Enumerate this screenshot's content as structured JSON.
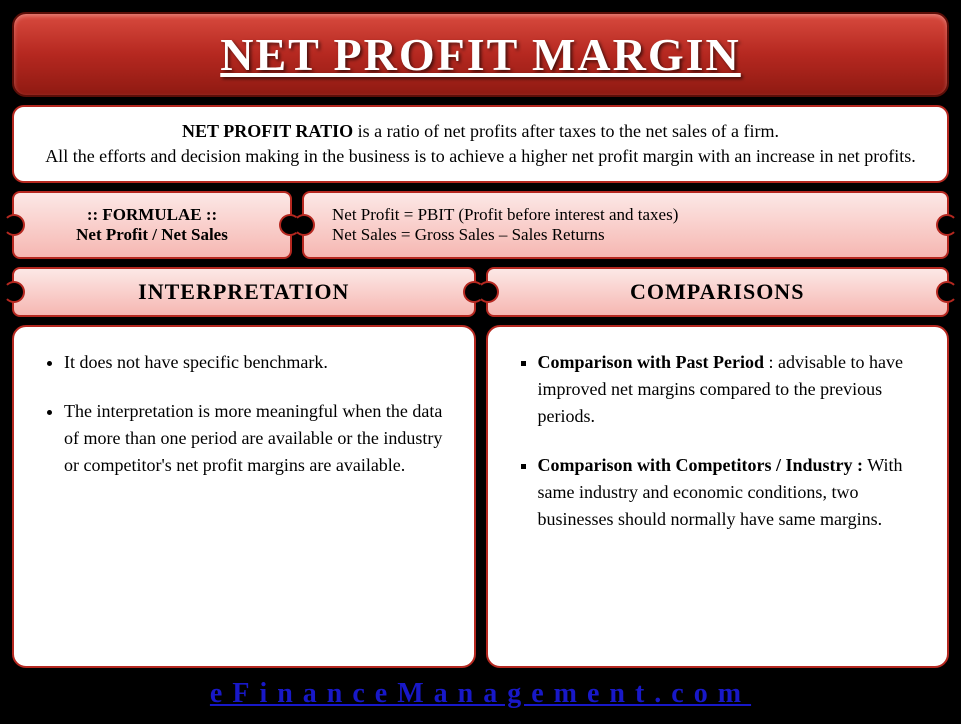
{
  "title": "NET PROFIT MARGIN",
  "intro": {
    "bold_lead": "NET PROFIT RATIO",
    "lead_rest": " is a ratio of net profits after taxes to the net sales of a firm.",
    "line2": "All the efforts and decision making in the business is to achieve a higher net profit margin with an increase in net profits."
  },
  "formula": {
    "header": ":: FORMULAE ::",
    "expression": "Net Profit / Net Sales",
    "def1": "Net Profit = PBIT (Profit before interest and taxes)",
    "def2": "Net Sales = Gross Sales – Sales Returns"
  },
  "sections": {
    "left_header": "INTERPRETATION",
    "right_header": "COMPARISONS"
  },
  "interpretation": {
    "item1": "It does not have specific benchmark.",
    "item2": "The interpretation is more meaningful when the data of more than one period are available or the industry or competitor's net profit margins are available."
  },
  "comparisons": {
    "item1_bold": "Comparison with Past Period",
    "item1_rest": " : advisable to have improved net margins compared to the previous periods.",
    "item2_bold": "Comparison with Competitors / Industry :",
    "item2_rest": " With same industry and economic conditions, two businesses should normally have same margins."
  },
  "footer": "eFinanceManagement.com",
  "colors": {
    "banner_gradient_top": "#d84a3e",
    "banner_gradient_mid": "#b52820",
    "banner_gradient_bottom": "#8f1a12",
    "border": "#b52820",
    "ticket_gradient_top": "#fce8e6",
    "ticket_gradient_bottom": "#f6b7b2",
    "background": "#000000",
    "footer_text": "#1818c8",
    "box_bg": "#ffffff"
  }
}
